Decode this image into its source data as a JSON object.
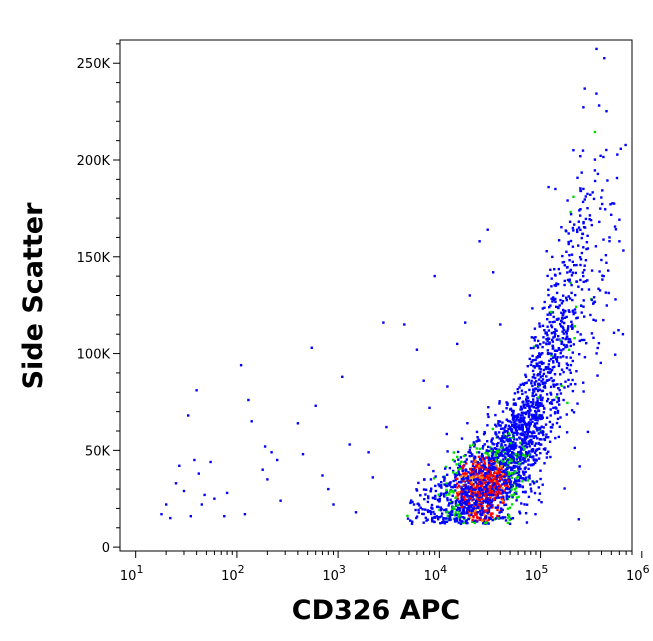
{
  "chart_data": {
    "type": "scatter",
    "title": "",
    "xlabel": "CD326 APC",
    "ylabel": "Side Scatter",
    "x_scale": "log",
    "xlim": [
      7,
      800000
    ],
    "ylim": [
      -2000,
      262000
    ],
    "grid": false,
    "x_ticks": [
      {
        "value": 10,
        "base": "10",
        "exp": "1"
      },
      {
        "value": 100,
        "base": "10",
        "exp": "2"
      },
      {
        "value": 1000,
        "base": "10",
        "exp": "3"
      },
      {
        "value": 10000,
        "base": "10",
        "exp": "4"
      },
      {
        "value": 100000,
        "base": "10",
        "exp": "5"
      },
      {
        "value": 1000000,
        "base": "10",
        "exp": "6"
      }
    ],
    "y_ticks": [
      {
        "value": 0,
        "label": "0"
      },
      {
        "value": 50000,
        "label": "50K"
      },
      {
        "value": 100000,
        "label": "100K"
      },
      {
        "value": 150000,
        "label": "150K"
      },
      {
        "value": 200000,
        "label": "200K"
      },
      {
        "value": 250000,
        "label": "250K"
      }
    ],
    "density_colors": {
      "low": "#0000ff",
      "medium": "#00dd00",
      "high": "#ff0000",
      "peak": "#ff8800"
    },
    "scattered_points": [
      [
        18,
        17000
      ],
      [
        20,
        22000
      ],
      [
        22,
        15000
      ],
      [
        25,
        33000
      ],
      [
        27,
        42000
      ],
      [
        30,
        29000
      ],
      [
        33,
        68000
      ],
      [
        35,
        16000
      ],
      [
        38,
        45000
      ],
      [
        40,
        81000
      ],
      [
        42,
        38000
      ],
      [
        45,
        22000
      ],
      [
        48,
        27000
      ],
      [
        55,
        44000
      ],
      [
        60,
        25000
      ],
      [
        75,
        16000
      ],
      [
        80,
        28000
      ],
      [
        110,
        94000
      ],
      [
        120,
        17000
      ],
      [
        130,
        76000
      ],
      [
        140,
        65000
      ],
      [
        180,
        40000
      ],
      [
        190,
        52000
      ],
      [
        200,
        35000
      ],
      [
        220,
        49000
      ],
      [
        250,
        45000
      ],
      [
        270,
        24000
      ],
      [
        400,
        64000
      ],
      [
        450,
        48000
      ],
      [
        550,
        103000
      ],
      [
        600,
        73000
      ],
      [
        700,
        37000
      ],
      [
        800,
        30000
      ],
      [
        900,
        22000
      ],
      [
        1100,
        88000
      ],
      [
        1300,
        53000
      ],
      [
        1500,
        18000
      ],
      [
        2000,
        49000
      ],
      [
        2200,
        36000
      ],
      [
        2800,
        116000
      ],
      [
        3000,
        62000
      ],
      [
        4500,
        115000
      ],
      [
        6000,
        102000
      ],
      [
        7000,
        86000
      ],
      [
        9000,
        140000
      ],
      [
        12000,
        83000
      ],
      [
        18000,
        116000
      ],
      [
        20000,
        130000
      ],
      [
        25000,
        158000
      ],
      [
        30000,
        164000
      ],
      [
        34000,
        142000
      ],
      [
        40000,
        115000
      ],
      [
        15000,
        105000
      ],
      [
        8000,
        72000
      ],
      [
        120000,
        186000
      ],
      [
        140000,
        185000
      ],
      [
        250000,
        184000
      ],
      [
        310000,
        182000
      ],
      [
        200000,
        172000
      ],
      [
        230000,
        164000
      ],
      [
        380000,
        168000
      ],
      [
        480000,
        160000
      ],
      [
        600000,
        158000
      ],
      [
        420000,
        140000
      ],
      [
        550000,
        128000
      ],
      [
        650000,
        110000
      ]
    ],
    "dense_cloud": {
      "description_points": "main population of events following a rising curve",
      "curve": [
        [
          3000,
          15000
        ],
        [
          10000,
          22000
        ],
        [
          30000,
          32000
        ],
        [
          60000,
          50000
        ],
        [
          100000,
          75000
        ],
        [
          150000,
          105000
        ],
        [
          250000,
          140000
        ],
        [
          400000,
          165000
        ]
      ],
      "event_count": 2600
    }
  }
}
